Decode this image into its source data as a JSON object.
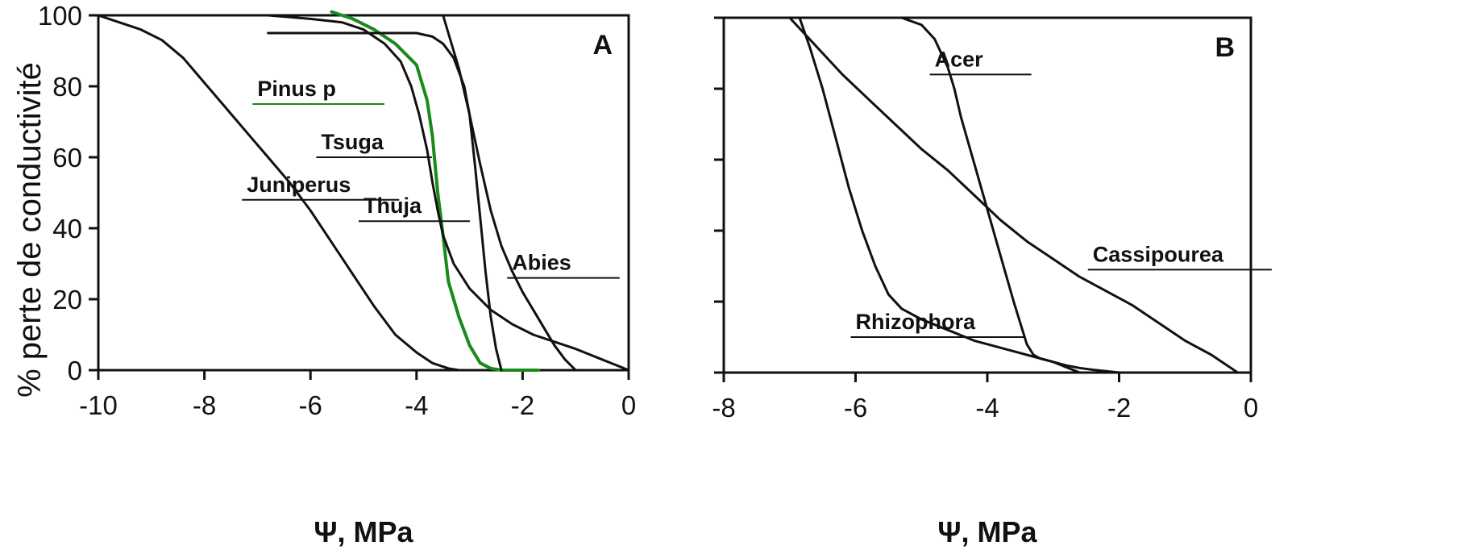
{
  "ylabel": "% perte de conductivité",
  "chart_data": [
    {
      "type": "line",
      "panel": "A",
      "xlabel": "Ψ, MPa",
      "xlim": [
        -10,
        0
      ],
      "ylim": [
        0,
        100
      ],
      "xticks": [
        "-10",
        "-8",
        "-6",
        "-4",
        "-2",
        "0"
      ],
      "yticks": [
        "0",
        "20",
        "40",
        "60",
        "80",
        "100"
      ],
      "grid": false,
      "series": [
        {
          "name": "Juniperus",
          "color": "#111111",
          "label_at": [
            -7.2,
            48
          ],
          "x": [
            -10,
            -9.6,
            -9.2,
            -8.8,
            -8.4,
            -8.0,
            -7.6,
            -7.2,
            -6.8,
            -6.4,
            -6.0,
            -5.6,
            -5.2,
            -4.8,
            -4.4,
            -4.0,
            -3.7,
            -3.4,
            -3.2
          ],
          "y": [
            100,
            98,
            96,
            93,
            88,
            81,
            74,
            67,
            60,
            53,
            45,
            36,
            27,
            18,
            10,
            5,
            2,
            0.5,
            0
          ]
        },
        {
          "name": "Pinus p",
          "color": "#1a8a1a",
          "label_at": [
            -7.0,
            75
          ],
          "x": [
            -5.6,
            -5.2,
            -4.8,
            -4.4,
            -4.0,
            -3.8,
            -3.7,
            -3.6,
            -3.5,
            -3.4,
            -3.2,
            -3.0,
            -2.8,
            -2.6,
            -2.4,
            -2.0,
            -1.7
          ],
          "y": [
            101,
            99,
            96,
            92,
            86,
            76,
            66,
            50,
            38,
            25,
            15,
            7,
            2,
            0.5,
            0,
            0,
            0
          ]
        },
        {
          "name": "Thuja",
          "color": "#111111",
          "label_at": [
            -5.0,
            42
          ],
          "x": [
            -6.8,
            -6.0,
            -5.4,
            -5.0,
            -4.6,
            -4.3,
            -4.1,
            -3.95,
            -3.8,
            -3.7,
            -3.6,
            -3.5,
            -3.3,
            -3.0,
            -2.6,
            -2.2,
            -1.8,
            -1.4,
            -1.0,
            -0.5,
            0
          ],
          "y": [
            100,
            99,
            98,
            96,
            92,
            87,
            80,
            72,
            62,
            53,
            45,
            38,
            30,
            23,
            17,
            13,
            10,
            8,
            6,
            3,
            0
          ]
        },
        {
          "name": "Tsuga",
          "color": "#111111",
          "label_at": [
            -5.8,
            60
          ],
          "x": [
            -6.8,
            -6.0,
            -5.0,
            -4.5,
            -4.0,
            -3.7,
            -3.5,
            -3.3,
            -3.1,
            -3.0,
            -2.9,
            -2.8,
            -2.7,
            -2.6,
            -2.5,
            -2.4
          ],
          "y": [
            95,
            95,
            95,
            95,
            95,
            94,
            92,
            88,
            80,
            72,
            58,
            43,
            28,
            15,
            6,
            0
          ]
        },
        {
          "name": "Abies",
          "color": "#111111",
          "label_at": [
            -2.2,
            26
          ],
          "x": [
            -3.5,
            -3.2,
            -3.0,
            -2.8,
            -2.6,
            -2.4,
            -2.2,
            -2.0,
            -1.8,
            -1.6,
            -1.4,
            -1.2,
            -1.0
          ],
          "y": [
            100,
            85,
            72,
            58,
            45,
            35,
            28,
            22,
            17,
            12,
            7,
            3,
            0
          ]
        }
      ]
    },
    {
      "type": "line",
      "panel": "B",
      "xlabel": "Ψ, MPa",
      "xlim": [
        -8,
        0
      ],
      "ylim": [
        0,
        100
      ],
      "xticks": [
        "-8",
        "-6",
        "-4",
        "-2",
        "0"
      ],
      "grid": false,
      "series": [
        {
          "name": "Acer",
          "color": "#111111",
          "label_at": [
            -4.8,
            84
          ],
          "x": [
            -5.3,
            -5.0,
            -4.8,
            -4.6,
            -4.5,
            -4.4,
            -4.2,
            -4.0,
            -3.8,
            -3.6,
            -3.4,
            -3.3,
            -3.2,
            -3.0,
            -2.8,
            -2.6,
            -2.4,
            -2.2,
            -2.0
          ],
          "y": [
            100,
            98,
            94,
            86,
            80,
            72,
            59,
            46,
            33,
            20,
            8,
            5,
            4,
            3,
            2,
            1.3,
            0.8,
            0.4,
            0
          ]
        },
        {
          "name": "Cassipourea",
          "color": "#111111",
          "label_at": [
            -2.4,
            29
          ],
          "x": [
            -7.0,
            -6.6,
            -6.2,
            -5.8,
            -5.4,
            -5.0,
            -4.6,
            -4.2,
            -3.8,
            -3.4,
            -3.0,
            -2.6,
            -2.2,
            -1.8,
            -1.4,
            -1.0,
            -0.6,
            -0.2
          ],
          "y": [
            100,
            92,
            84,
            77,
            70,
            63,
            57,
            50,
            43,
            37,
            32,
            27,
            23,
            19,
            14,
            9,
            5,
            0
          ]
        },
        {
          "name": "Rhizophora",
          "color": "#111111",
          "label_at": [
            -6.0,
            10
          ],
          "x": [
            -6.85,
            -6.7,
            -6.5,
            -6.3,
            -6.1,
            -5.9,
            -5.7,
            -5.5,
            -5.3,
            -5.0,
            -4.6,
            -4.2,
            -3.8,
            -3.4,
            -3.0,
            -2.6
          ],
          "y": [
            100,
            92,
            80,
            66,
            52,
            40,
            30,
            22,
            18,
            15,
            12,
            9,
            7,
            5,
            3,
            0
          ]
        }
      ]
    }
  ]
}
